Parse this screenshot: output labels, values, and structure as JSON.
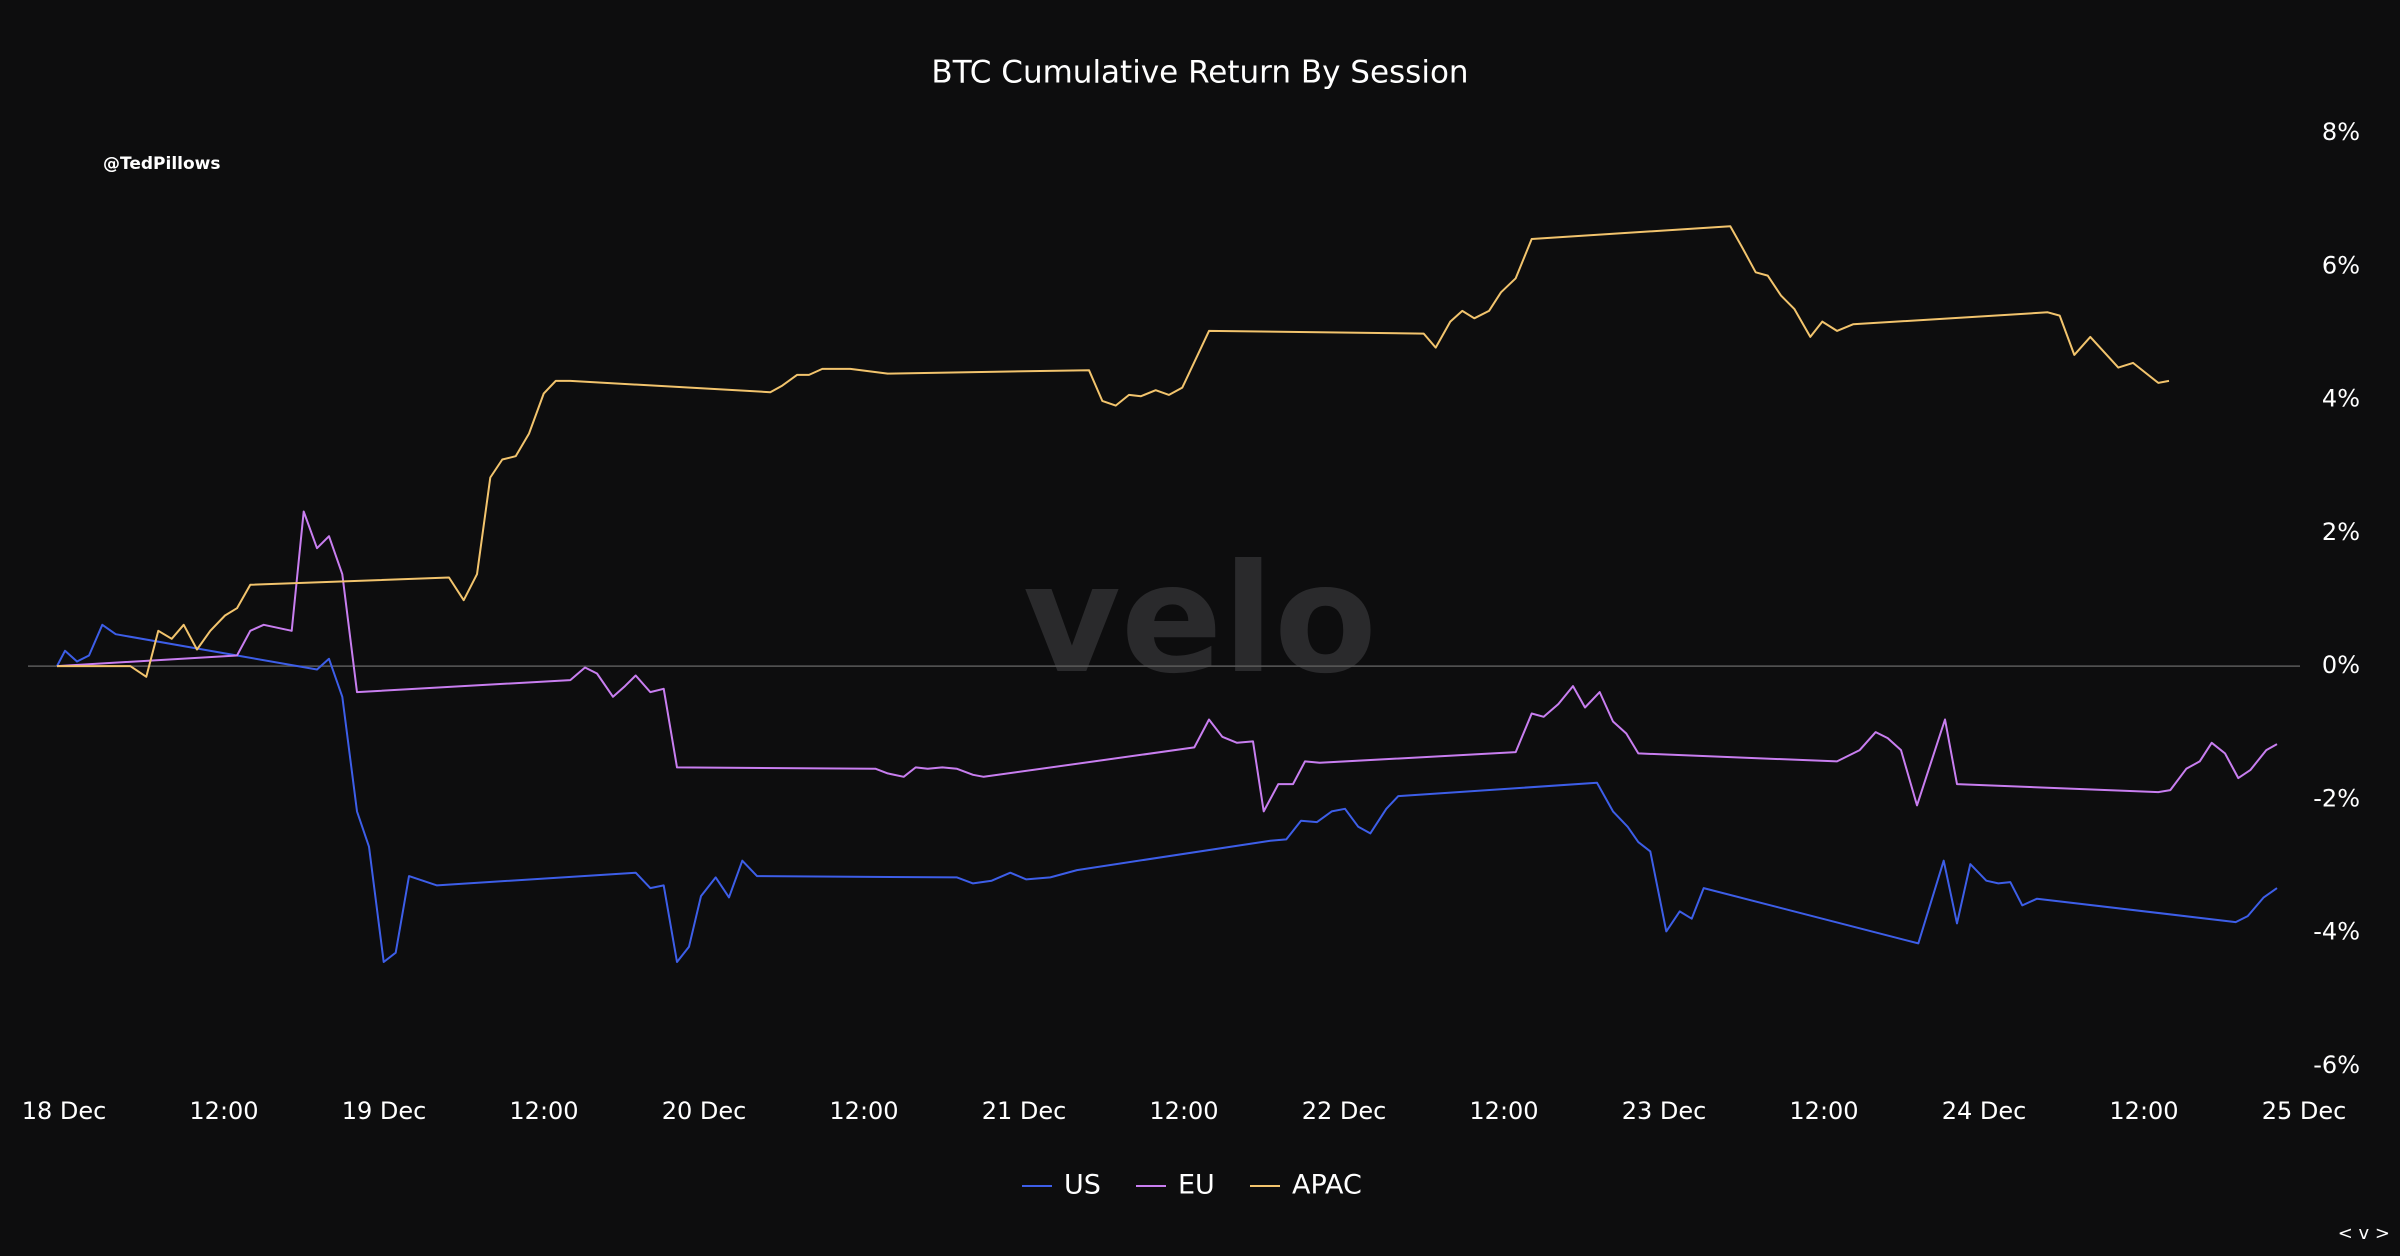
{
  "chart_data": {
    "type": "line",
    "title": "BTC Cumulative Return By Session",
    "annotations": [
      "@TedPillows",
      "velo",
      "< v >"
    ],
    "xlim": [
      0,
      168
    ],
    "xticks": [
      {
        "value": 0,
        "label": "18 Dec"
      },
      {
        "value": 12,
        "label": "12:00"
      },
      {
        "value": 24,
        "label": "19 Dec"
      },
      {
        "value": 36,
        "label": "12:00"
      },
      {
        "value": 48,
        "label": "20 Dec"
      },
      {
        "value": 60,
        "label": "12:00"
      },
      {
        "value": 72,
        "label": "21 Dec"
      },
      {
        "value": 84,
        "label": "12:00"
      },
      {
        "value": 96,
        "label": "22 Dec"
      },
      {
        "value": 108,
        "label": "12:00"
      },
      {
        "value": 120,
        "label": "23 Dec"
      },
      {
        "value": 132,
        "label": "12:00"
      },
      {
        "value": 144,
        "label": "24 Dec"
      },
      {
        "value": 156,
        "label": "12:00"
      },
      {
        "value": 168,
        "label": "25 Dec"
      }
    ],
    "ylim": [
      -6,
      8
    ],
    "yticks": [
      {
        "value": -6,
        "label": "-6%"
      },
      {
        "value": -4,
        "label": "-4%"
      },
      {
        "value": -2,
        "label": "-2%"
      },
      {
        "value": 0,
        "label": "0%"
      },
      {
        "value": 2,
        "label": "2%"
      },
      {
        "value": 4,
        "label": "4%"
      },
      {
        "value": 6,
        "label": "6%"
      },
      {
        "value": 8,
        "label": "8%"
      }
    ],
    "series": [
      {
        "name": "US",
        "color": "#3d5ee8",
        "x": [
          0,
          0.6,
          1.5,
          2.4,
          3.4,
          4.4,
          13.5,
          19.5,
          20.4,
          21.4,
          22.5,
          23.4,
          24.5,
          25.4,
          26.4,
          28.5,
          43.4,
          44.5,
          45.5,
          46.5,
          47.4,
          48.3,
          49.4,
          50.4,
          51.4,
          52.5,
          67.5,
          68.7,
          70.1,
          71.5,
          72.7,
          74.5,
          76.5,
          91.0,
          92.2,
          93.3,
          94.5,
          95.6,
          96.6,
          97.6,
          98.5,
          99.7,
          100.6,
          115.5,
          116.7,
          117.8,
          118.6,
          119.5,
          120.7,
          121.7,
          122.6,
          123.5,
          139.6,
          141.5,
          142.5,
          143.5,
          144.7,
          145.6,
          146.5,
          147.4,
          148.5,
          163.4,
          164.3,
          165.5,
          166.5
        ],
        "values": [
          0,
          0.23,
          0.07,
          0.16,
          0.62,
          0.48,
          0.16,
          -0.05,
          0.11,
          -0.46,
          -2.18,
          -2.71,
          -4.44,
          -4.3,
          -3.15,
          -3.29,
          -3.1,
          -3.33,
          -3.29,
          -4.44,
          -4.21,
          -3.45,
          -3.17,
          -3.47,
          -2.92,
          -3.15,
          -3.17,
          -3.26,
          -3.22,
          -3.1,
          -3.2,
          -3.17,
          -3.06,
          -2.62,
          -2.6,
          -2.32,
          -2.34,
          -2.18,
          -2.14,
          -2.41,
          -2.51,
          -2.14,
          -1.95,
          -1.75,
          -2.18,
          -2.41,
          -2.64,
          -2.78,
          -3.98,
          -3.68,
          -3.79,
          -3.33,
          -4.16,
          -2.92,
          -3.86,
          -2.97,
          -3.22,
          -3.26,
          -3.24,
          -3.59,
          -3.49,
          -3.84,
          -3.75,
          -3.47,
          -3.33
        ]
      },
      {
        "name": "EU",
        "color": "#c87ef0",
        "x": [
          0,
          13.5,
          14.5,
          15.5,
          17.6,
          18.5,
          19.5,
          20.4,
          21.4,
          22.5,
          38.5,
          39.6,
          40.5,
          41.7,
          42.6,
          43.4,
          44.5,
          45.5,
          46.5,
          61.4,
          62.3,
          63.5,
          64.4,
          65.3,
          66.4,
          67.5,
          68.7,
          69.5,
          85.3,
          86.4,
          87.4,
          88.5,
          89.7,
          90.5,
          91.6,
          92.7,
          93.6,
          94.7,
          109.4,
          110.6,
          111.5,
          112.6,
          113.7,
          114.6,
          115.7,
          116.7,
          117.7,
          118.6,
          133.5,
          135.2,
          136.4,
          137.3,
          138.3,
          139.5,
          141.6,
          142.5,
          157.6,
          158.5,
          159.7,
          160.7,
          161.6,
          162.6,
          163.6,
          164.5,
          165.7,
          166.5
        ],
        "values": [
          0,
          0.16,
          0.53,
          0.62,
          0.53,
          2.32,
          1.77,
          1.95,
          1.38,
          -0.39,
          -0.21,
          -0.02,
          -0.11,
          -0.46,
          -0.3,
          -0.14,
          -0.39,
          -0.34,
          -1.52,
          -1.54,
          -1.61,
          -1.66,
          -1.52,
          -1.54,
          -1.52,
          -1.54,
          -1.63,
          -1.66,
          -1.22,
          -0.8,
          -1.06,
          -1.15,
          -1.13,
          -2.18,
          -1.77,
          -1.77,
          -1.43,
          -1.45,
          -1.29,
          -0.71,
          -0.76,
          -0.57,
          -0.3,
          -0.62,
          -0.39,
          -0.83,
          -1.01,
          -1.31,
          -1.43,
          -1.26,
          -0.99,
          -1.08,
          -1.26,
          -2.09,
          -0.8,
          -1.77,
          -1.89,
          -1.86,
          -1.54,
          -1.43,
          -1.15,
          -1.31,
          -1.68,
          -1.56,
          -1.26,
          -1.17
        ]
      },
      {
        "name": "APAC",
        "color": "#f2c46d",
        "x": [
          0,
          5.5,
          6.7,
          7.6,
          8.6,
          9.5,
          10.5,
          11.5,
          12.6,
          13.5,
          14.5,
          29.4,
          30.5,
          31.5,
          32.5,
          33.4,
          34.4,
          35.4,
          36.5,
          37.4,
          38.5,
          53.5,
          54.4,
          55.5,
          56.4,
          57.4,
          59.5,
          62.3,
          77.4,
          78.4,
          79.4,
          80.4,
          81.3,
          82.4,
          83.4,
          84.4,
          86.4,
          102.5,
          103.4,
          104.5,
          105.4,
          106.3,
          107.4,
          108.3,
          109.4,
          110.6,
          125.5,
          126.4,
          127.4,
          128.3,
          129.3,
          130.3,
          131.5,
          132.4,
          133.5,
          134.7,
          149.3,
          150.2,
          151.3,
          152.5,
          154.6,
          155.7,
          157.6,
          158.4
        ],
        "values": [
          0,
          0,
          -0.16,
          0.53,
          0.41,
          0.62,
          0.25,
          0.53,
          0.76,
          0.87,
          1.22,
          1.33,
          0.99,
          1.38,
          2.83,
          3.1,
          3.15,
          3.49,
          4.09,
          4.28,
          4.28,
          4.11,
          4.21,
          4.37,
          4.37,
          4.46,
          4.46,
          4.39,
          4.44,
          3.98,
          3.91,
          4.07,
          4.05,
          4.14,
          4.07,
          4.18,
          5.03,
          4.99,
          4.78,
          5.17,
          5.33,
          5.22,
          5.33,
          5.61,
          5.82,
          6.41,
          6.6,
          6.28,
          5.91,
          5.86,
          5.56,
          5.36,
          4.94,
          5.17,
          5.03,
          5.13,
          5.31,
          5.26,
          4.67,
          4.94,
          4.48,
          4.55,
          4.25,
          4.28
        ]
      }
    ],
    "legend": "bottom"
  }
}
